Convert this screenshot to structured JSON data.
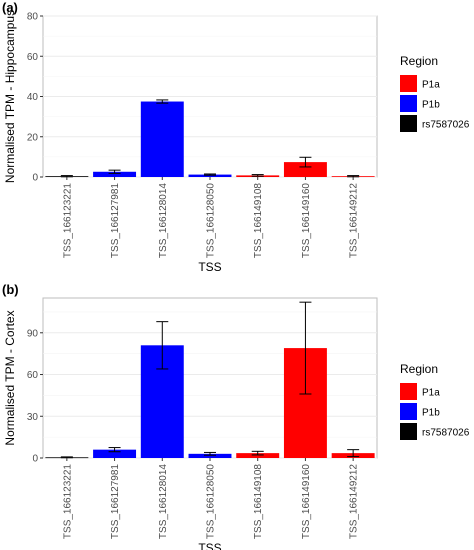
{
  "chart_data": [
    {
      "type": "bar",
      "panel": "(a)",
      "xlabel": "TSS",
      "ylabel": "Normalised TPM - Hippocampus",
      "ylim": [
        0,
        80
      ],
      "yticks": [
        0,
        20,
        40,
        60,
        80
      ],
      "grid": true,
      "legend": {
        "title": "Region",
        "placement": "right",
        "entries": [
          "P1a",
          "P1b",
          "rs7587026"
        ]
      },
      "categories": [
        "TSS_166123221",
        "TSS_166127981",
        "TSS_166128014",
        "TSS_166128050",
        "TSS_166149108",
        "TSS_166149160",
        "TSS_166149212"
      ],
      "values": [
        0.4,
        2.6,
        37.5,
        1.2,
        0.8,
        7.4,
        0.4
      ],
      "errors": [
        0.3,
        0.8,
        0.8,
        0.3,
        0.4,
        2.4,
        0.3
      ],
      "regions": [
        "rs7587026",
        "P1b",
        "P1b",
        "P1b",
        "P1a",
        "P1a",
        "P1a"
      ]
    },
    {
      "type": "bar",
      "panel": "(b)",
      "xlabel": "TSS",
      "ylabel": "Normalised TPM - Cortex",
      "ylim": [
        0,
        115
      ],
      "yticks": [
        0,
        30,
        60,
        90
      ],
      "grid": true,
      "legend": {
        "title": "Region",
        "placement": "right",
        "entries": [
          "P1a",
          "P1b",
          "rs7587026"
        ]
      },
      "categories": [
        "TSS_166123221",
        "TSS_166127981",
        "TSS_166128014",
        "TSS_166128050",
        "TSS_166149108",
        "TSS_166149160",
        "TSS_166149212"
      ],
      "values": [
        0.5,
        6.0,
        81.0,
        3.0,
        3.5,
        79.0,
        3.5
      ],
      "errors": [
        0.3,
        1.5,
        17.0,
        1.0,
        1.3,
        33.0,
        2.5
      ],
      "regions": [
        "rs7587026",
        "P1b",
        "P1b",
        "P1b",
        "P1a",
        "P1a",
        "P1a"
      ]
    }
  ],
  "colors": {
    "P1a": "#ff0000",
    "P1b": "#0000ff",
    "rs7587026": "#000000",
    "panel_bg": "#ffffff",
    "grid": "#ebebeb",
    "border": "#bdbdbd"
  }
}
